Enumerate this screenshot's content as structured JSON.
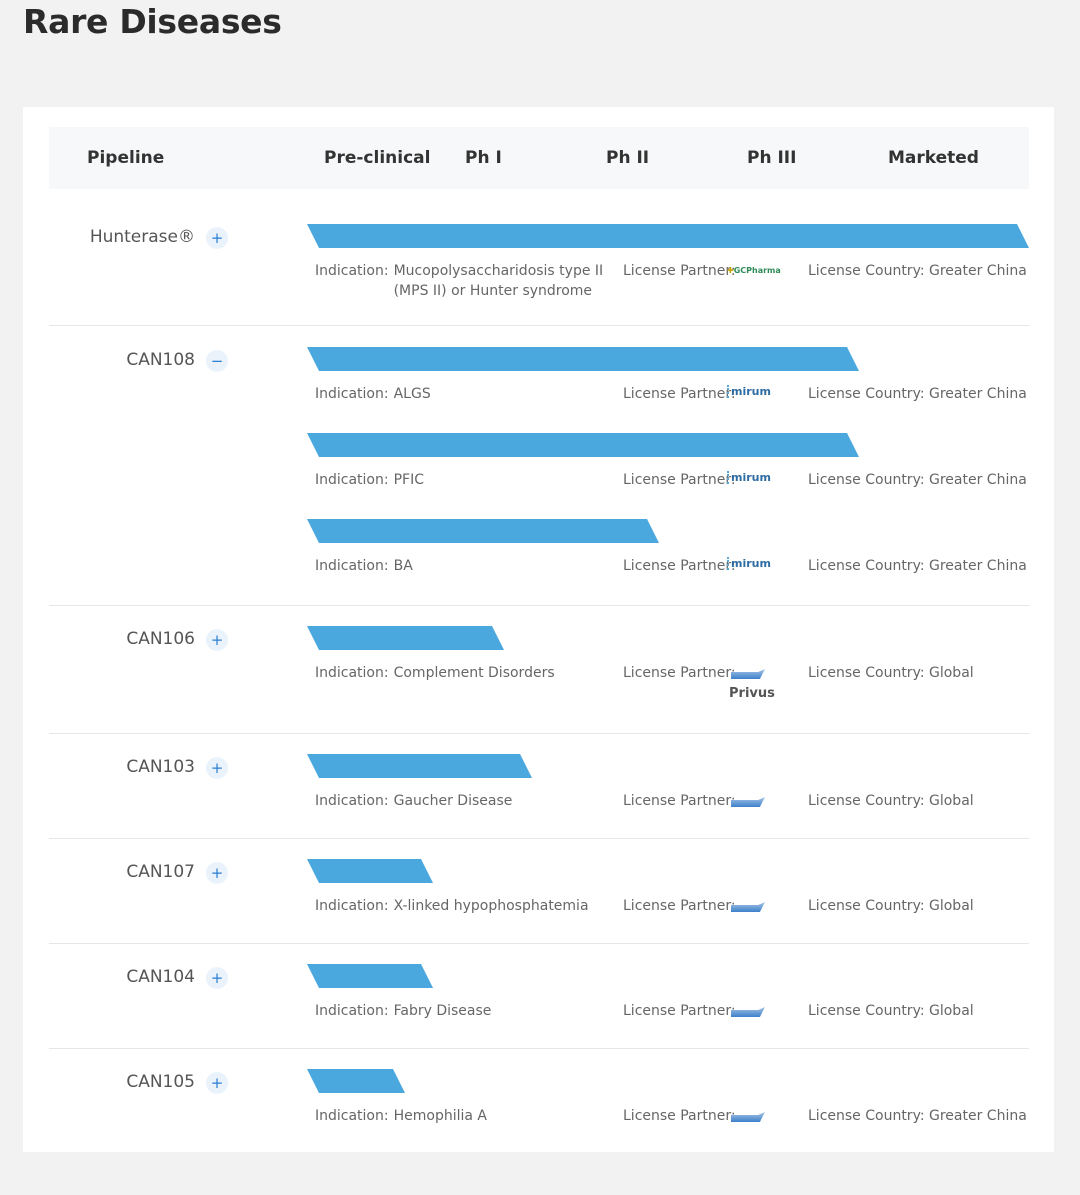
{
  "title": "Rare Diseases",
  "header": {
    "pipeline": "Pipeline",
    "preclinical": "Pre-clinical",
    "ph1": "Ph I",
    "ph2": "Ph II",
    "ph3": "Ph III",
    "marketed": "Marketed"
  },
  "labels": {
    "indication": "Indication:",
    "license_partner": "License Partner:",
    "license_country": "License Country:"
  },
  "programs": [
    {
      "name": "Hunterase®",
      "toggle": "+",
      "rows": [
        {
          "indication": "Mucopolysaccharidosis type II (MPS II) or Hunter syndrome",
          "partner_logo": "gc-pharma-logo",
          "partner_logo_text": "GCPharma",
          "country": "Greater China",
          "progress": "Marketed"
        }
      ]
    },
    {
      "name": "CAN108",
      "toggle": "−",
      "rows": [
        {
          "indication": "ALGS",
          "partner_logo": "mirum-logo",
          "partner_logo_text": "mirum",
          "country": "Greater China",
          "progress": "Ph III (completed)"
        },
        {
          "indication": "PFIC",
          "partner_logo": "mirum-logo",
          "partner_logo_text": "mirum",
          "country": "Greater China",
          "progress": "Ph III (completed)"
        },
        {
          "indication": "BA",
          "partner_logo": "mirum-logo",
          "partner_logo_text": "mirum",
          "country": "Greater China",
          "progress": "Ph II"
        }
      ]
    },
    {
      "name": "CAN106",
      "toggle": "+",
      "rows": [
        {
          "indication": "Complement Disorders",
          "partner_logo": "multibiologics-logo",
          "partner_name": "Privus",
          "country": "Global",
          "progress": "Ph I"
        }
      ]
    },
    {
      "name": "CAN103",
      "toggle": "+",
      "rows": [
        {
          "indication": "Gaucher Disease",
          "partner_logo": "multibiologics-logo",
          "country": "Global",
          "progress": "Ph I/II"
        }
      ]
    },
    {
      "name": "CAN107",
      "toggle": "+",
      "rows": [
        {
          "indication": " X-linked hypophosphatemia",
          "partner_logo": "multibiologics-logo",
          "country": "Global",
          "progress": "Pre-clinical"
        }
      ]
    },
    {
      "name": "CAN104",
      "toggle": "+",
      "rows": [
        {
          "indication": "Fabry Disease",
          "partner_logo": "multibiologics-logo",
          "country": "Global",
          "progress": "Pre-clinical"
        }
      ]
    },
    {
      "name": "CAN105",
      "toggle": "+",
      "rows": [
        {
          "indication": "Hemophilia A",
          "partner_logo": "multibiologics-logo",
          "country": "Greater China",
          "progress": "Pre-clinical"
        }
      ]
    }
  ],
  "colors": {
    "bar": "#4aa8de",
    "toggle_bg": "#eaf3fb",
    "toggle_fg": "#2a7fd4",
    "page_bg": "#f2f2f2"
  }
}
